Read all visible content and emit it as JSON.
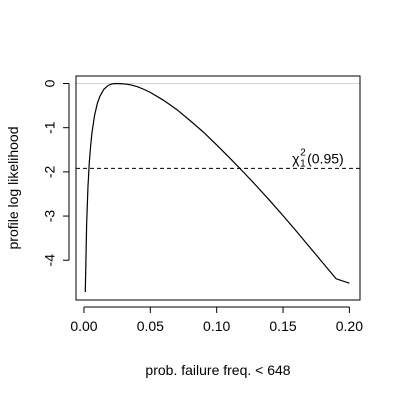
{
  "chart_data": {
    "type": "line",
    "title": "",
    "xlabel": "prob. failure freq. < 648",
    "ylabel": "profile log likelihood",
    "xlim": [
      -0.006,
      0.208
    ],
    "ylim": [
      -4.9,
      0.17
    ],
    "x_ticks": [
      0.0,
      0.05,
      0.1,
      0.15,
      0.2
    ],
    "x_tick_labels": [
      "0.00",
      "0.05",
      "0.10",
      "0.15",
      "0.20"
    ],
    "y_ticks": [
      0,
      -1,
      -2,
      -3,
      -4
    ],
    "y_tick_labels": [
      "0",
      "-1",
      "-2",
      "-3",
      "-4"
    ],
    "grid": false,
    "legend": null,
    "series": [
      {
        "x": [
          0.001,
          0.002,
          0.003,
          0.004,
          0.005,
          0.006,
          0.008,
          0.01,
          0.012,
          0.015,
          0.018,
          0.02,
          0.022,
          0.025,
          0.028,
          0.03,
          0.032,
          0.035,
          0.04,
          0.045,
          0.05,
          0.06,
          0.07,
          0.08,
          0.09,
          0.1,
          0.11,
          0.12,
          0.13,
          0.14,
          0.15,
          0.16,
          0.17,
          0.18,
          0.19,
          0.2
        ],
        "values": [
          -4.72,
          -3.2,
          -2.35,
          -1.8,
          -1.42,
          -1.12,
          -0.72,
          -0.46,
          -0.29,
          -0.13,
          -0.05,
          -0.02,
          -0.005,
          0.0,
          -0.005,
          -0.01,
          -0.015,
          -0.03,
          -0.07,
          -0.13,
          -0.2,
          -0.38,
          -0.59,
          -0.84,
          -1.1,
          -1.39,
          -1.69,
          -2.0,
          -2.32,
          -2.65,
          -2.99,
          -3.34,
          -3.7,
          -4.06,
          -4.42,
          -4.52
        ]
      }
    ],
    "hlines": [
      {
        "y": 0,
        "color": "#d3d3d3",
        "style": "solid"
      },
      {
        "y": -1.92,
        "color": "#000000",
        "style": "dashed"
      }
    ],
    "annotations": [
      {
        "text": "χ",
        "superscript": "2",
        "subscript": "1",
        "suffix": "(0.95)",
        "x": 0.19,
        "y": -1.92
      }
    ]
  }
}
